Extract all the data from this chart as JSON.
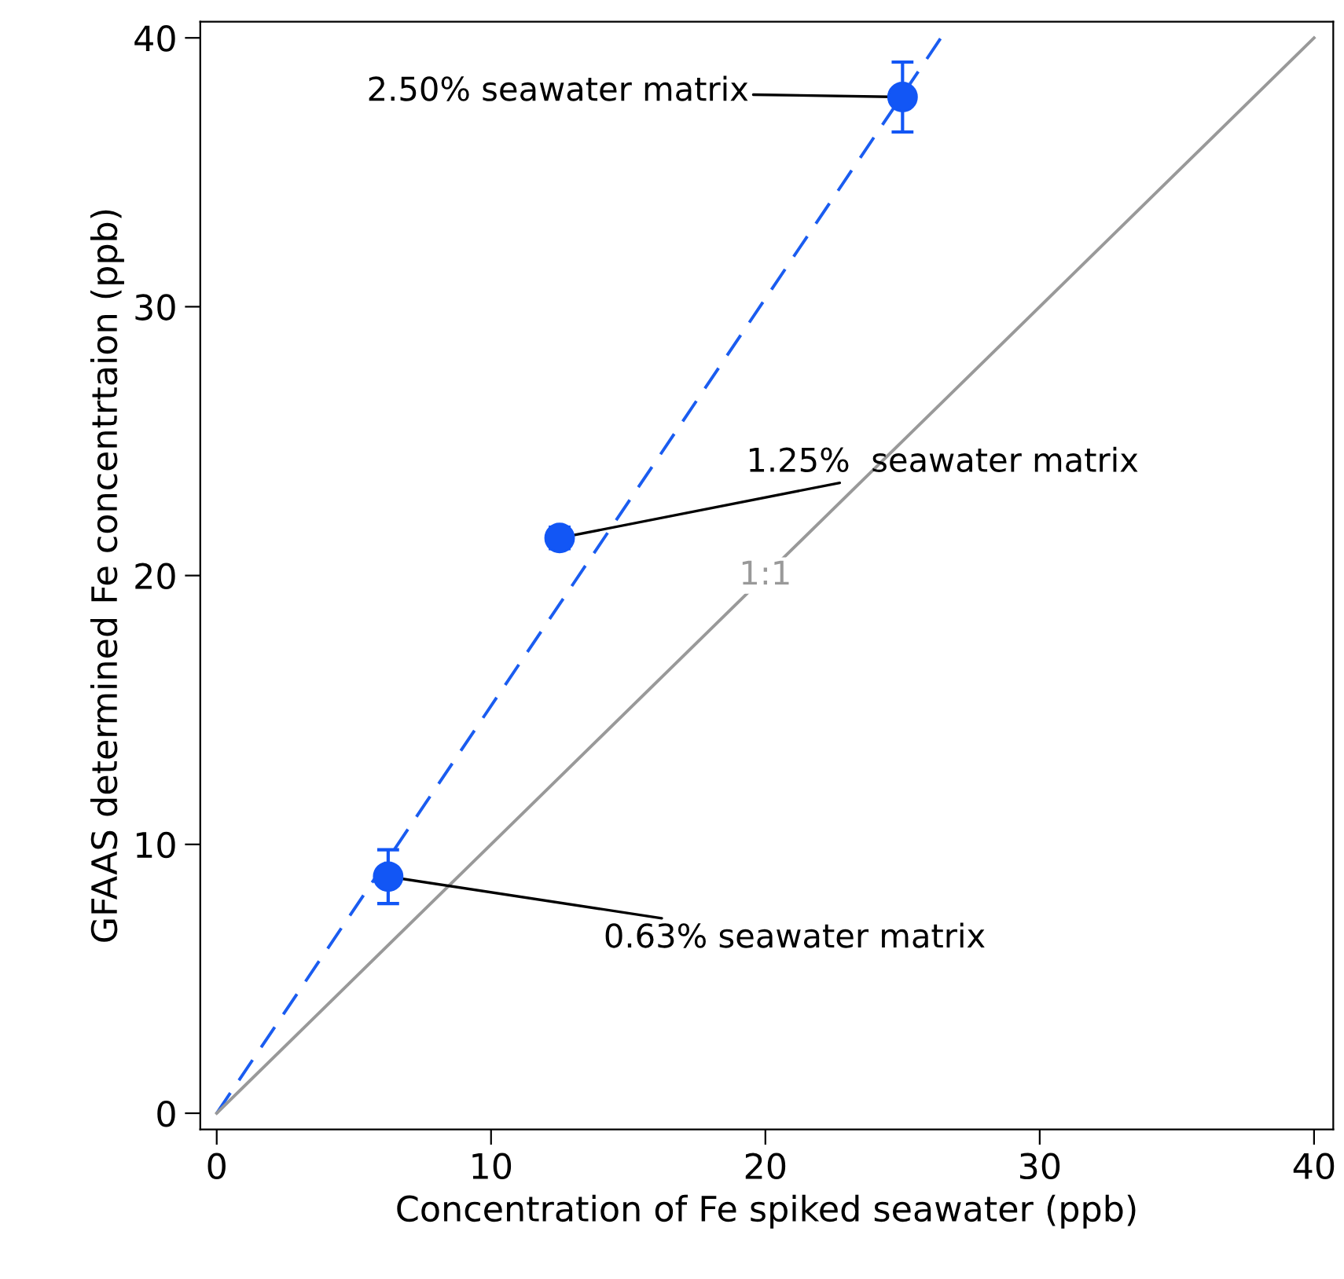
{
  "chart_data": {
    "type": "scatter",
    "xlabel": "Concentration of Fe spiked seawater (ppb)",
    "ylabel": "GFAAS determined Fe concentrtaion (ppb)",
    "series": [
      {
        "type": "scatter",
        "color": "#1256f5",
        "x": [
          6.25,
          12.5,
          25
        ],
        "values": [
          8.8,
          21.4,
          37.8
        ],
        "errors": [
          1.0,
          0.4,
          1.3
        ],
        "marker": "circle"
      },
      {
        "type": "line",
        "color": "#1a5cf0",
        "x": [
          0,
          26.4
        ],
        "values": [
          0,
          40
        ],
        "line_style": "dashed"
      },
      {
        "type": "line",
        "name": "1:1",
        "color": "#999999",
        "x": [
          0,
          40
        ],
        "values": [
          0,
          40
        ],
        "line_style": "solid"
      }
    ],
    "annotations": [
      {
        "text": "2.50% seawater matrix",
        "x": 25,
        "y": 37.8
      },
      {
        "text": "1.25%  seawater matrix",
        "x": 12.5,
        "y": 21.4
      },
      {
        "text": "0.63% seawater matrix",
        "x": 6.25,
        "y": 8.8
      }
    ],
    "xlim": [
      -0.6,
      40.7
    ],
    "ylim": [
      -0.6,
      40.6
    ],
    "xticks": [
      0,
      10,
      20,
      30,
      40
    ],
    "yticks": [
      0,
      10,
      20,
      30,
      40
    ],
    "grid": false,
    "legend": false
  }
}
